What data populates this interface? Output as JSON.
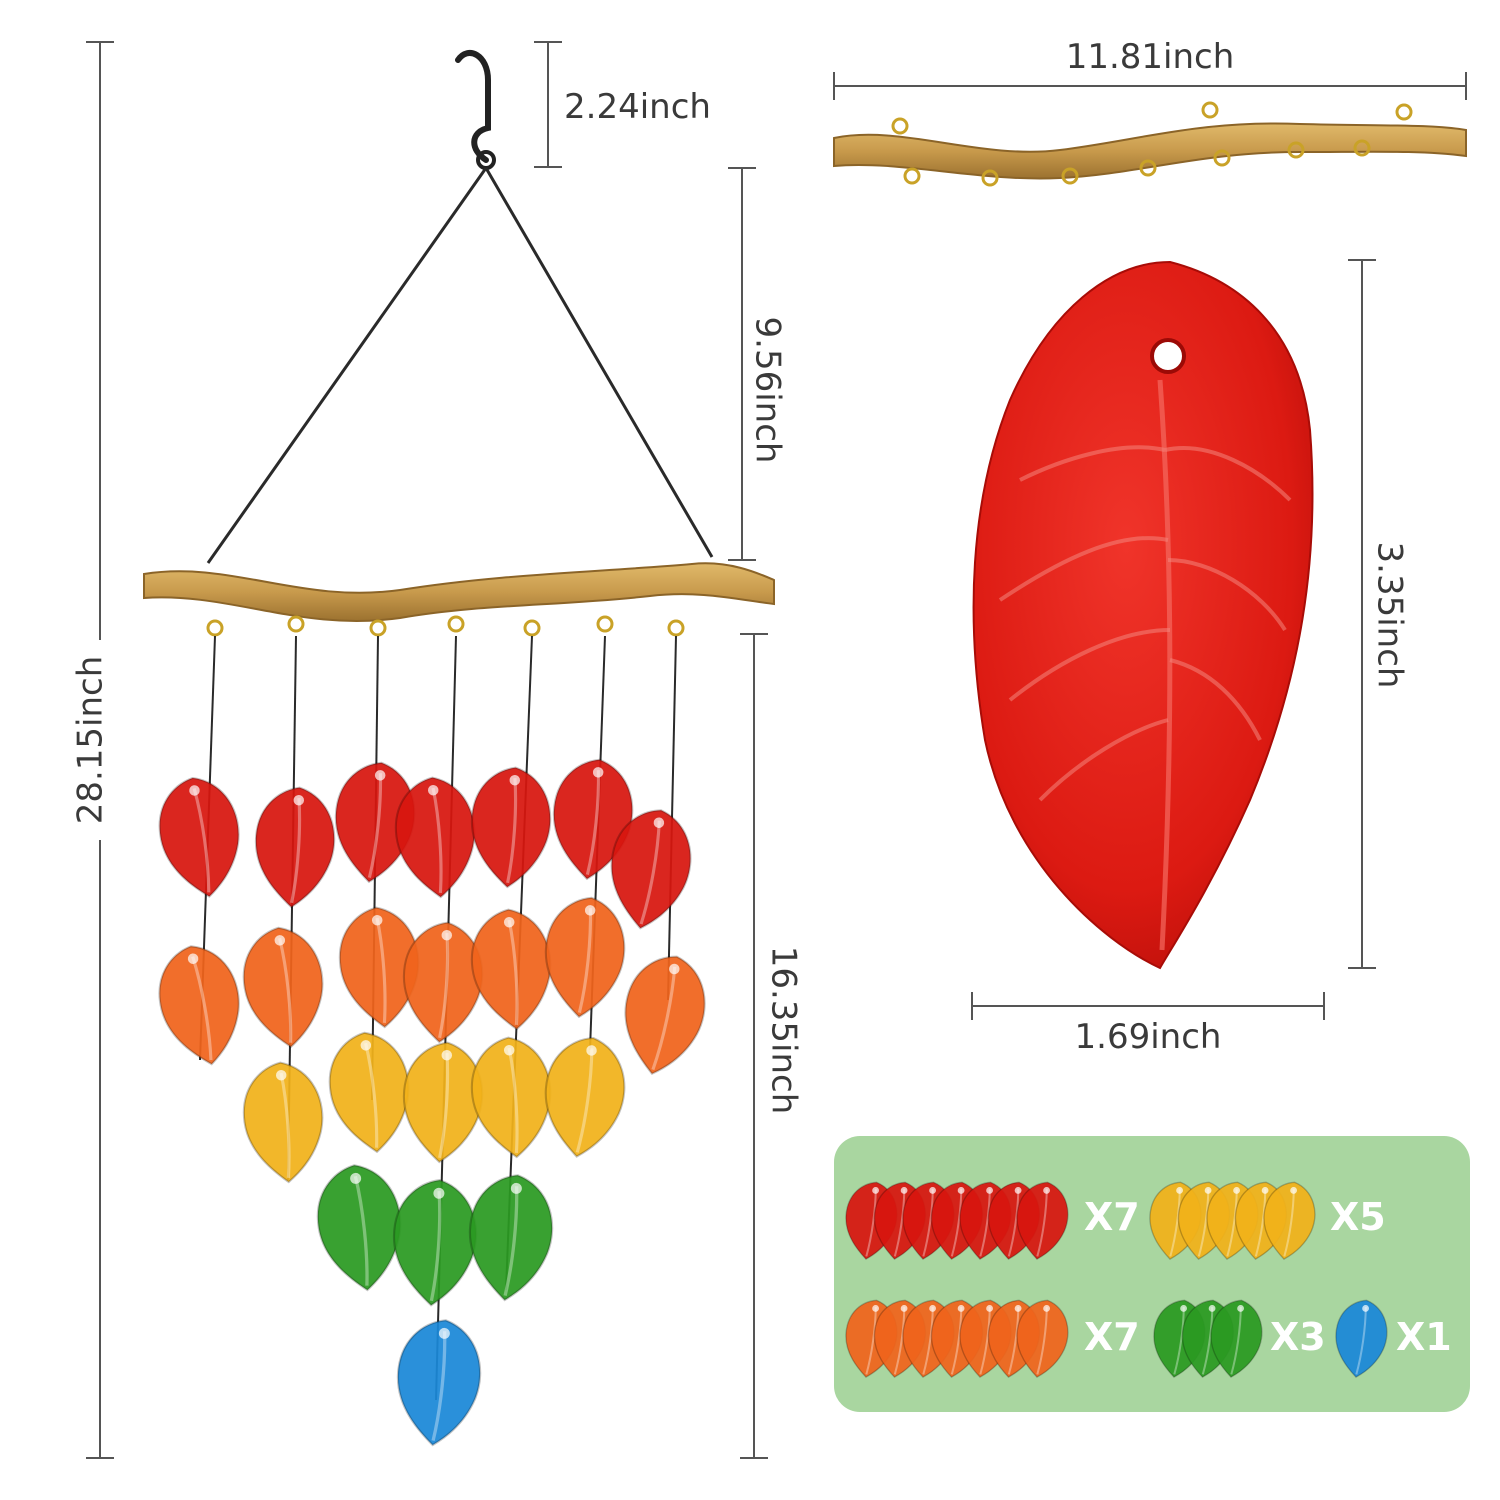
{
  "dimensions": {
    "total_height": "28.15inch",
    "hook_height": "2.24inch",
    "hanger_height": "9.56inch",
    "leaves_length": "16.35inch",
    "branch_length": "11.81inch",
    "leaf_height": "3.35inch",
    "leaf_width": "1.69inch"
  },
  "legend": {
    "items": [
      {
        "color_name": "red",
        "color": "#d8160f",
        "count": 7,
        "label": "X7"
      },
      {
        "color_name": "yellow",
        "color": "#f2b21a",
        "count": 5,
        "label": "X5"
      },
      {
        "color_name": "orange",
        "color": "#f0641c",
        "count": 7,
        "label": "X7"
      },
      {
        "color_name": "green",
        "color": "#2b9a22",
        "count": 3,
        "label": "X3"
      },
      {
        "color_name": "blue",
        "color": "#1a88d8",
        "count": 1,
        "label": "X1"
      }
    ],
    "panel_color": "#a9d6a0"
  },
  "colors": {
    "red": "#d8160f",
    "orange": "#f0641c",
    "yellow": "#f2b21a",
    "green": "#2b9a22",
    "blue": "#1a88d8",
    "wood": "#c89a4c",
    "wire": "#2a2a2a",
    "dim_line": "#555555"
  }
}
